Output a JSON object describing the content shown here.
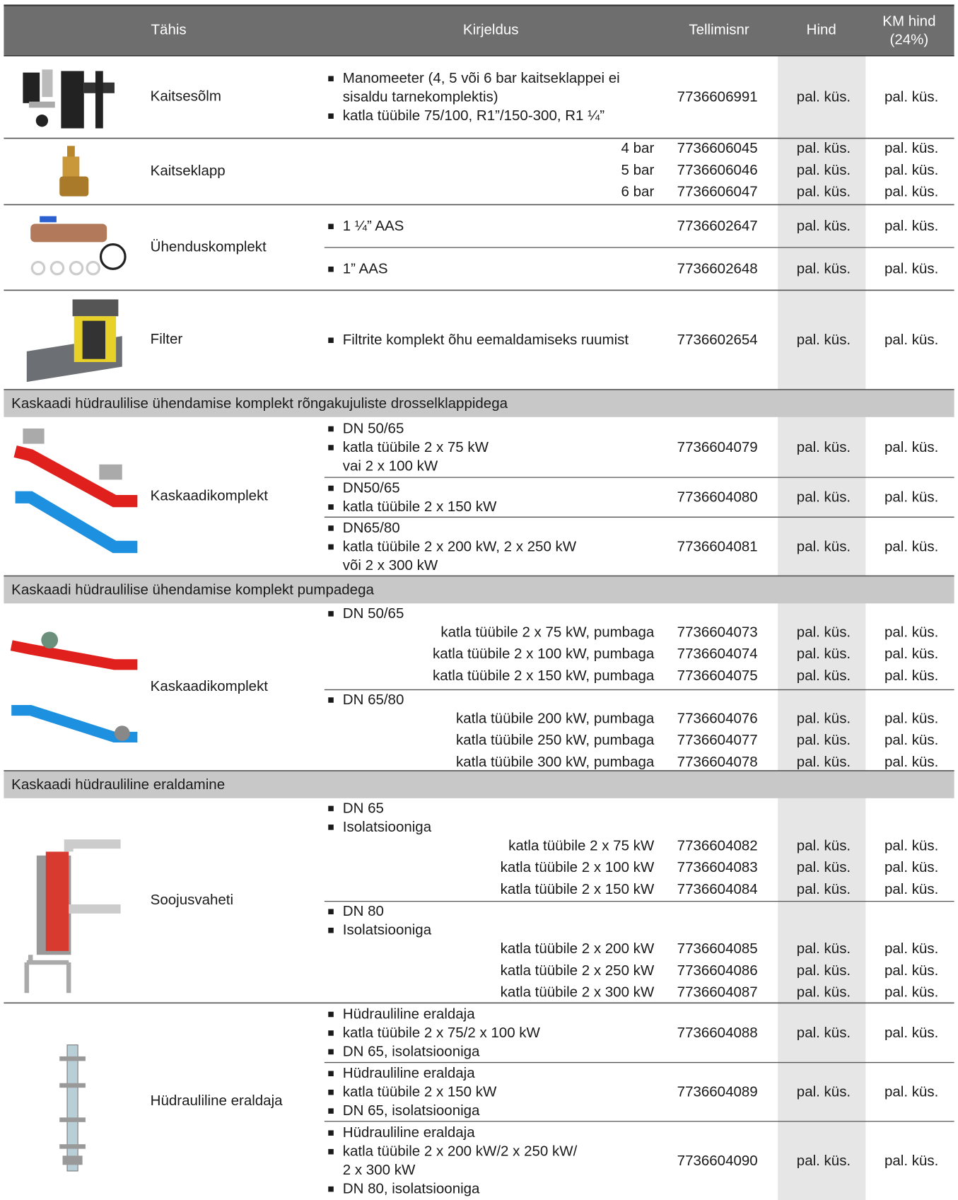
{
  "header": {
    "columns": [
      "Tähis",
      "Kirjeldus",
      "Tellimisnr",
      "Hind"
    ],
    "vat_column": [
      "KM hind",
      "(24%)"
    ]
  },
  "groups": [
    {
      "products": [
        {
          "name": "Kaitsesõlm",
          "rows": [
            {
              "bullets": [
                [
                  "Manomeeter (4, 5 või 6 bar kaitseklappei ei",
                  "sisaldu tarnekomplektis)"
                ],
                [
                  "katla tüübile 75/100, R1”/150-300, R1 ¼”"
                ]
              ],
              "order": "7736606991",
              "price": "pal. küs.",
              "vat_price": "pal. küs."
            }
          ]
        },
        {
          "name": "Kaitseklapp",
          "rows": [
            {
              "variants": [
                {
                  "label": "4 bar",
                  "order": "7736606045",
                  "price": "pal. küs.",
                  "vat_price": "pal. küs."
                },
                {
                  "label": "5 bar",
                  "order": "7736606046",
                  "price": "pal. küs.",
                  "vat_price": "pal. küs."
                },
                {
                  "label": "6 bar",
                  "order": "7736606047",
                  "price": "pal. küs.",
                  "vat_price": "pal. küs."
                }
              ]
            }
          ]
        },
        {
          "name": "Ühenduskomplekt",
          "rows": [
            {
              "bullets": [
                [
                  "1 ¼” AAS"
                ]
              ],
              "order": "7736602647",
              "price": "pal. küs.",
              "vat_price": "pal. küs."
            },
            {
              "bullets": [
                [
                  "1” AAS"
                ]
              ],
              "order": "7736602648",
              "price": "pal. küs.",
              "vat_price": "pal. küs."
            }
          ]
        },
        {
          "name": "Filter",
          "rows": [
            {
              "bullets": [
                [
                  "Filtrite komplekt õhu eemaldamiseks ruumist"
                ]
              ],
              "order": "7736602654",
              "price": "pal. küs.",
              "vat_price": "pal. küs."
            }
          ]
        }
      ]
    },
    {
      "section": "Kaskaadi hüdraulilise ühendamise komplekt rõngakujuliste drosselklappidega",
      "products": [
        {
          "name": "Kaskaadikomplekt",
          "rows": [
            {
              "bullets": [
                [
                  "DN 50/65"
                ],
                [
                  "katla tüübile 2 x 75 kW",
                  "vai 2 x 100 kW"
                ]
              ],
              "order": "7736604079",
              "price": "pal. küs.",
              "vat_price": "pal. küs."
            },
            {
              "bullets": [
                [
                  "DN50/65"
                ],
                [
                  "katla tüübile 2 x 150 kW"
                ]
              ],
              "order": "7736604080",
              "price": "pal. küs.",
              "vat_price": "pal. küs."
            },
            {
              "bullets": [
                [
                  "DN65/80"
                ],
                [
                  "katla tüübile 2 x 200 kW, 2 x 250 kW",
                  "või 2 x 300 kW"
                ]
              ],
              "order": "7736604081",
              "price": "pal. küs.",
              "vat_price": "pal. küs."
            }
          ]
        }
      ]
    },
    {
      "section": "Kaskaadi hüdraulilise ühendamise komplekt pumpadega",
      "products": [
        {
          "name": "Kaskaadikomplekt",
          "rows": [
            {
              "bullets": [
                [
                  "DN 50/65"
                ]
              ],
              "variants": [
                {
                  "label": "katla tüübile 2 x 75 kW, pumbaga",
                  "order": "7736604073",
                  "price": "pal. küs.",
                  "vat_price": "pal. küs."
                },
                {
                  "label": "katla tüübile 2 x 100 kW, pumbaga",
                  "order": "7736604074",
                  "price": "pal. küs.",
                  "vat_price": "pal. küs."
                },
                {
                  "label": "katla tüübile 2 x 150 kW, pumbaga",
                  "order": "7736604075",
                  "price": "pal. küs.",
                  "vat_price": "pal. küs."
                }
              ]
            },
            {
              "bullets": [
                [
                  "DN 65/80"
                ]
              ],
              "variants": [
                {
                  "label": "katla tüübile 200 kW, pumbaga",
                  "order": "7736604076",
                  "price": "pal. küs.",
                  "vat_price": "pal. küs."
                },
                {
                  "label": "katla tüübile 250 kW, pumbaga",
                  "order": "7736604077",
                  "price": "pal. küs.",
                  "vat_price": "pal. küs."
                },
                {
                  "label": "katla tüübile 300 kW, pumbaga",
                  "order": "7736604078",
                  "price": "pal. küs.",
                  "vat_price": "pal. küs."
                }
              ]
            }
          ]
        }
      ]
    },
    {
      "section": "Kaskaadi hüdrauliline eraldamine",
      "products": [
        {
          "name": "Soojusvaheti",
          "rows": [
            {
              "bullets": [
                [
                  "DN 65"
                ],
                [
                  "Isolatsiooniga"
                ]
              ],
              "variants": [
                {
                  "label": "katla tüübile 2 x 75 kW",
                  "order": "7736604082",
                  "price": "pal. küs.",
                  "vat_price": "pal. küs."
                },
                {
                  "label": "katla tüübile 2 x 100 kW",
                  "order": "7736604083",
                  "price": "pal. küs.",
                  "vat_price": "pal. küs."
                },
                {
                  "label": "katla tüübile 2 x 150 kW",
                  "order": "7736604084",
                  "price": "pal. küs.",
                  "vat_price": "pal. küs."
                }
              ]
            },
            {
              "bullets": [
                [
                  "DN 80"
                ],
                [
                  "Isolatsiooniga"
                ]
              ],
              "variants": [
                {
                  "label": "katla tüübile 2 x 200 kW",
                  "order": "7736604085",
                  "price": "pal. küs.",
                  "vat_price": "pal. küs."
                },
                {
                  "label": "katla tüübile 2 x 250 kW",
                  "order": "7736604086",
                  "price": "pal. küs.",
                  "vat_price": "pal. küs."
                },
                {
                  "label": "katla tüübile 2 x 300 kW",
                  "order": "7736604087",
                  "price": "pal. küs.",
                  "vat_price": "pal. küs."
                }
              ]
            }
          ]
        },
        {
          "name": "Hüdrauliline eraldaja",
          "rows": [
            {
              "bullets": [
                [
                  "Hüdrauliline eraldaja"
                ],
                [
                  "katla tüübile 2 x 75/2 x 100 kW"
                ],
                [
                  "DN 65, isolatsiooniga"
                ]
              ],
              "order": "7736604088",
              "price": "pal. küs.",
              "vat_price": "pal. küs."
            },
            {
              "bullets": [
                [
                  "Hüdrauliline eraldaja"
                ],
                [
                  "katla tüübile 2 x 150 kW"
                ],
                [
                  "DN 65, isolatsiooniga"
                ]
              ],
              "order": "7736604089",
              "price": "pal. küs.",
              "vat_price": "pal. küs."
            },
            {
              "bullets": [
                [
                  "Hüdrauliline eraldaja"
                ],
                [
                  "katla tüübile 2 x 200 kW/2 x 250 kW/",
                  "2 x 300 kW"
                ],
                [
                  "DN 80, isolatsiooniga"
                ]
              ],
              "order": "7736604090",
              "price": "pal. küs.",
              "vat_price": "pal. küs."
            }
          ]
        }
      ]
    }
  ]
}
